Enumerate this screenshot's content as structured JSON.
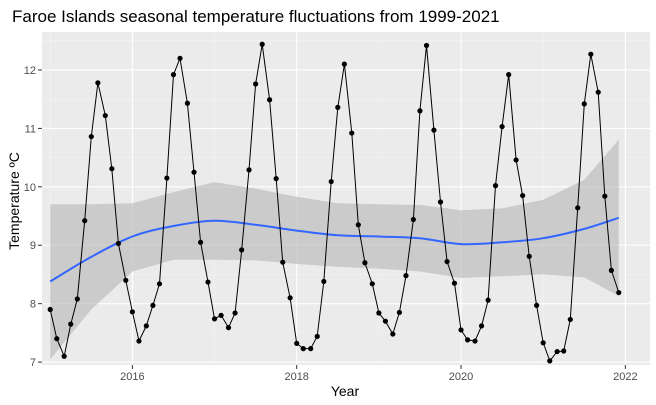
{
  "chart_data": {
    "type": "line",
    "title": "Faroe Islands seasonal temperature fluctuations from 1999-2021",
    "xlabel": "Year",
    "ylabel": "Temperature ºC",
    "xlim": [
      2014.9,
      2022.3
    ],
    "ylim": [
      6.95,
      12.65
    ],
    "x_ticks": [
      2016,
      2018,
      2020,
      2022
    ],
    "x_tick_labels": [
      "2016",
      "2018",
      "2020",
      "2022"
    ],
    "y_ticks": [
      7,
      8,
      9,
      10,
      11,
      12
    ],
    "y_tick_labels": [
      "7",
      "8",
      "9",
      "10",
      "11",
      "12"
    ],
    "grid": true,
    "legend": "none",
    "series": [
      {
        "kind": "points-and-line",
        "x": [
          2015.0,
          2015.08,
          2015.17,
          2015.25,
          2015.33,
          2015.42,
          2015.5,
          2015.58,
          2015.67,
          2015.75,
          2015.83,
          2015.92,
          2016.0,
          2016.08,
          2016.17,
          2016.25,
          2016.33,
          2016.42,
          2016.5,
          2016.58,
          2016.67,
          2016.75,
          2016.83,
          2016.92,
          2017.0,
          2017.08,
          2017.17,
          2017.25,
          2017.33,
          2017.42,
          2017.5,
          2017.58,
          2017.67,
          2017.75,
          2017.83,
          2017.92,
          2018.0,
          2018.08,
          2018.17,
          2018.25,
          2018.33,
          2018.42,
          2018.5,
          2018.58,
          2018.67,
          2018.75,
          2018.83,
          2018.92,
          2019.0,
          2019.08,
          2019.17,
          2019.25,
          2019.33,
          2019.42,
          2019.5,
          2019.58,
          2019.67,
          2019.75,
          2019.83,
          2019.92,
          2020.0,
          2020.08,
          2020.17,
          2020.25,
          2020.33,
          2020.42,
          2020.5,
          2020.58,
          2020.67,
          2020.75,
          2020.83,
          2020.92,
          2021.0,
          2021.08,
          2021.17,
          2021.25,
          2021.33,
          2021.42,
          2021.5,
          2021.58,
          2021.67,
          2021.75,
          2021.83,
          2021.92
        ],
        "y": [
          7.9,
          7.4,
          7.1,
          7.65,
          8.08,
          9.42,
          10.86,
          11.78,
          11.22,
          10.31,
          9.03,
          8.4,
          7.86,
          7.36,
          7.62,
          7.97,
          8.34,
          10.15,
          11.92,
          12.2,
          11.43,
          10.25,
          9.05,
          8.37,
          7.74,
          7.8,
          7.59,
          7.84,
          8.92,
          10.29,
          11.76,
          12.44,
          11.49,
          10.14,
          8.71,
          8.1,
          7.32,
          7.23,
          7.23,
          7.44,
          8.38,
          10.09,
          11.36,
          12.1,
          10.92,
          9.35,
          8.7,
          8.34,
          7.84,
          7.7,
          7.48,
          7.85,
          8.48,
          9.44,
          11.3,
          12.42,
          10.97,
          9.74,
          8.72,
          8.35,
          7.55,
          7.38,
          7.36,
          7.62,
          8.06,
          10.02,
          11.03,
          11.92,
          10.46,
          9.85,
          8.81,
          7.97,
          7.33,
          7.02,
          7.18,
          7.19,
          7.73,
          9.64,
          11.42,
          12.27,
          11.62,
          9.84,
          8.57,
          8.19
        ]
      },
      {
        "kind": "smooth-trend",
        "x": [
          2015.0,
          2015.5,
          2016.0,
          2016.5,
          2017.0,
          2017.5,
          2018.0,
          2018.5,
          2019.0,
          2019.5,
          2020.0,
          2020.5,
          2021.0,
          2021.5,
          2021.92
        ],
        "y": [
          8.38,
          8.8,
          9.15,
          9.33,
          9.42,
          9.35,
          9.25,
          9.17,
          9.15,
          9.12,
          9.02,
          9.05,
          9.12,
          9.28,
          9.47
        ],
        "ci_lower": [
          7.05,
          7.9,
          8.55,
          8.75,
          8.75,
          8.74,
          8.68,
          8.63,
          8.6,
          8.55,
          8.44,
          8.47,
          8.5,
          8.45,
          8.13
        ],
        "ci_upper": [
          9.7,
          9.7,
          9.72,
          9.91,
          10.08,
          9.97,
          9.83,
          9.72,
          9.7,
          9.69,
          9.6,
          9.63,
          9.78,
          10.12,
          10.81
        ]
      }
    ],
    "colors": {
      "panel_background": "#ebebeb",
      "grid_major": "#ffffff",
      "grid_minor": "#f4f4f4",
      "points": "#000000",
      "line": "#000000",
      "trend": "#3366ff",
      "ribbon": "#bebebe"
    }
  }
}
